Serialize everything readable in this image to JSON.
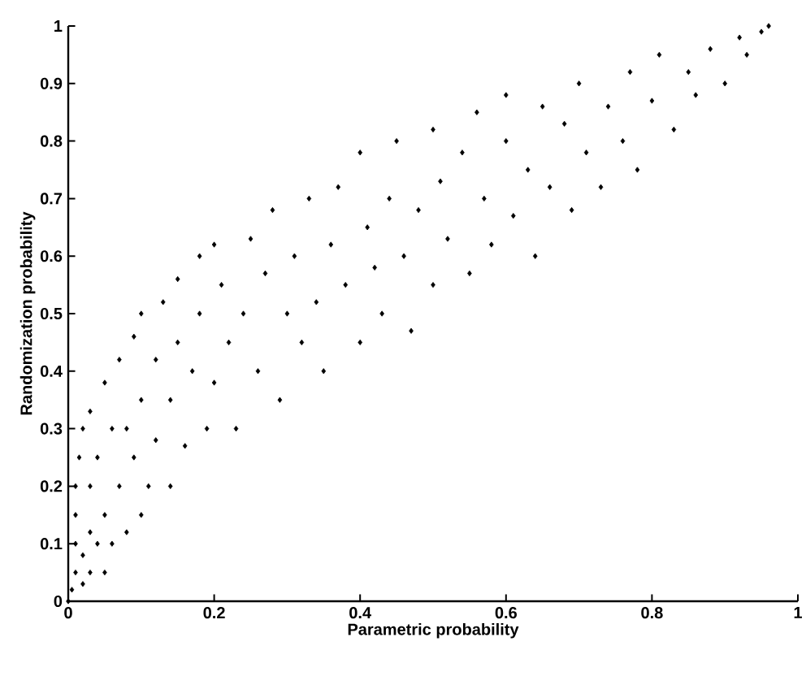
{
  "chart_data": {
    "type": "scatter",
    "xlabel": "Parametric probability",
    "ylabel": "Randomization probability",
    "xlim": [
      0,
      1
    ],
    "ylim": [
      0,
      1
    ],
    "xticks": [
      0,
      0.2,
      0.4,
      0.6,
      0.8,
      1
    ],
    "yticks": [
      0,
      0.1,
      0.2,
      0.3,
      0.4,
      0.5,
      0.6,
      0.7,
      0.8,
      0.9,
      1
    ],
    "marker": "diamond",
    "series": [
      {
        "color": "#000000",
        "x": [
          0,
          0.005,
          0.01,
          0.01,
          0.01,
          0.01,
          0.015,
          0.02,
          0.02,
          0.02,
          0.03,
          0.03,
          0.03,
          0.03,
          0.04,
          0.04,
          0.05,
          0.05,
          0.05,
          0.06,
          0.06,
          0.07,
          0.07,
          0.08,
          0.08,
          0.09,
          0.09,
          0.1,
          0.1,
          0.1,
          0.11,
          0.12,
          0.12,
          0.13,
          0.14,
          0.14,
          0.15,
          0.15,
          0.16,
          0.17,
          0.18,
          0.18,
          0.19,
          0.2,
          0.2,
          0.21,
          0.22,
          0.23,
          0.24,
          0.25,
          0.26,
          0.27,
          0.28,
          0.29,
          0.3,
          0.31,
          0.32,
          0.33,
          0.34,
          0.35,
          0.36,
          0.37,
          0.38,
          0.4,
          0.4,
          0.41,
          0.42,
          0.43,
          0.44,
          0.45,
          0.46,
          0.47,
          0.48,
          0.5,
          0.5,
          0.51,
          0.52,
          0.54,
          0.55,
          0.56,
          0.57,
          0.58,
          0.6,
          0.6,
          0.61,
          0.63,
          0.64,
          0.65,
          0.66,
          0.68,
          0.69,
          0.7,
          0.71,
          0.73,
          0.74,
          0.76,
          0.77,
          0.78,
          0.8,
          0.81,
          0.83,
          0.85,
          0.86,
          0.88,
          0.9,
          0.92,
          0.93,
          0.95,
          0.96
        ],
        "values": [
          0,
          0.02,
          0.05,
          0.1,
          0.15,
          0.2,
          0.25,
          0.03,
          0.08,
          0.3,
          0.05,
          0.12,
          0.2,
          0.33,
          0.1,
          0.25,
          0.05,
          0.15,
          0.38,
          0.1,
          0.3,
          0.2,
          0.42,
          0.12,
          0.3,
          0.25,
          0.46,
          0.15,
          0.35,
          0.5,
          0.2,
          0.28,
          0.42,
          0.52,
          0.2,
          0.35,
          0.45,
          0.56,
          0.27,
          0.4,
          0.5,
          0.6,
          0.3,
          0.38,
          0.62,
          0.55,
          0.45,
          0.3,
          0.5,
          0.63,
          0.4,
          0.57,
          0.68,
          0.35,
          0.5,
          0.6,
          0.45,
          0.7,
          0.52,
          0.4,
          0.62,
          0.72,
          0.55,
          0.45,
          0.78,
          0.65,
          0.58,
          0.5,
          0.7,
          0.8,
          0.6,
          0.47,
          0.68,
          0.82,
          0.55,
          0.73,
          0.63,
          0.78,
          0.57,
          0.85,
          0.7,
          0.62,
          0.8,
          0.88,
          0.67,
          0.75,
          0.6,
          0.86,
          0.72,
          0.83,
          0.68,
          0.9,
          0.78,
          0.72,
          0.86,
          0.8,
          0.92,
          0.75,
          0.87,
          0.95,
          0.82,
          0.92,
          0.88,
          0.96,
          0.9,
          0.98,
          0.95,
          0.99,
          1.0
        ]
      }
    ]
  }
}
